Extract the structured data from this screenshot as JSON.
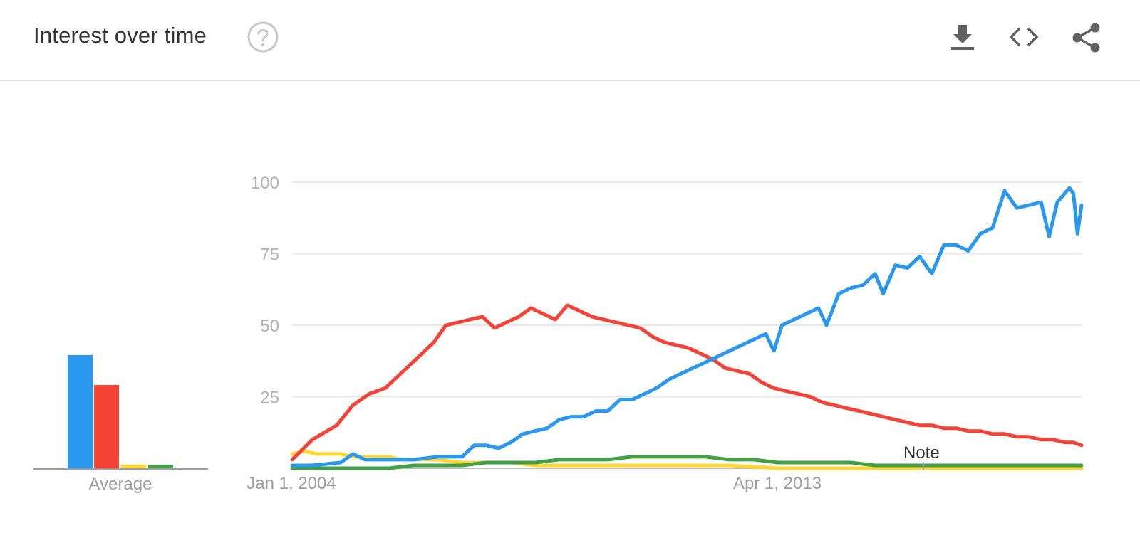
{
  "header": {
    "title": "Interest over time",
    "help_icon": "help-circle-icon",
    "actions": [
      {
        "name": "download",
        "icon": "download-icon"
      },
      {
        "name": "embed",
        "icon": "code-icon"
      },
      {
        "name": "share",
        "icon": "share-icon"
      }
    ]
  },
  "chart_data": {
    "type": "line",
    "x_ticks": [
      "Jan 1, 2004",
      "Apr 1, 2013"
    ],
    "x_range": [
      "2004-01",
      "2020-04"
    ],
    "ylim": [
      0,
      100
    ],
    "y_ticks": [
      25,
      50,
      75,
      100
    ],
    "grid": true,
    "annotations": [
      "Note"
    ],
    "average_label": "Average",
    "averages": [
      {
        "color": "#2b98f0",
        "value": 40
      },
      {
        "color": "#f44336",
        "value": 29.5
      },
      {
        "color": "#fdd835",
        "value": 1.5
      },
      {
        "color": "#43a047",
        "value": 1.5
      }
    ],
    "series": [
      {
        "color": "#2b98f0",
        "points": [
          [
            "2004-01",
            1
          ],
          [
            "2004-06",
            1
          ],
          [
            "2005-01",
            2
          ],
          [
            "2005-04",
            5
          ],
          [
            "2005-07",
            3
          ],
          [
            "2006-01",
            3
          ],
          [
            "2006-07",
            3
          ],
          [
            "2007-01",
            4
          ],
          [
            "2007-07",
            4
          ],
          [
            "2007-10",
            8
          ],
          [
            "2008-01",
            8
          ],
          [
            "2008-04",
            7
          ],
          [
            "2008-07",
            9
          ],
          [
            "2008-10",
            12
          ],
          [
            "2009-01",
            13
          ],
          [
            "2009-04",
            14
          ],
          [
            "2009-07",
            17
          ],
          [
            "2009-10",
            18
          ],
          [
            "2010-01",
            18
          ],
          [
            "2010-04",
            20
          ],
          [
            "2010-07",
            20
          ],
          [
            "2010-10",
            24
          ],
          [
            "2011-01",
            24
          ],
          [
            "2011-04",
            26
          ],
          [
            "2011-07",
            28
          ],
          [
            "2011-10",
            31
          ],
          [
            "2012-01",
            33
          ],
          [
            "2012-04",
            35
          ],
          [
            "2012-07",
            37
          ],
          [
            "2012-10",
            39
          ],
          [
            "2013-01",
            41
          ],
          [
            "2013-04",
            43
          ],
          [
            "2013-07",
            45
          ],
          [
            "2013-10",
            47
          ],
          [
            "2013-12",
            41
          ],
          [
            "2014-02",
            50
          ],
          [
            "2014-05",
            52
          ],
          [
            "2014-08",
            54
          ],
          [
            "2014-11",
            56
          ],
          [
            "2015-01",
            50
          ],
          [
            "2015-04",
            61
          ],
          [
            "2015-07",
            63
          ],
          [
            "2015-10",
            64
          ],
          [
            "2016-01",
            68
          ],
          [
            "2016-03",
            61
          ],
          [
            "2016-06",
            71
          ],
          [
            "2016-09",
            70
          ],
          [
            "2016-12",
            74
          ],
          [
            "2017-03",
            68
          ],
          [
            "2017-06",
            78
          ],
          [
            "2017-09",
            78
          ],
          [
            "2017-12",
            76
          ],
          [
            "2018-03",
            82
          ],
          [
            "2018-06",
            84
          ],
          [
            "2018-09",
            97
          ],
          [
            "2018-12",
            91
          ],
          [
            "2019-03",
            92
          ],
          [
            "2019-06",
            93
          ],
          [
            "2019-08",
            81
          ],
          [
            "2019-10",
            93
          ],
          [
            "2020-01",
            98
          ],
          [
            "2020-02",
            96
          ],
          [
            "2020-03",
            82
          ],
          [
            "2020-04",
            92
          ]
        ]
      },
      {
        "color": "#f44336",
        "points": [
          [
            "2004-01",
            3
          ],
          [
            "2004-06",
            10
          ],
          [
            "2004-12",
            15
          ],
          [
            "2005-04",
            22
          ],
          [
            "2005-08",
            26
          ],
          [
            "2005-12",
            28
          ],
          [
            "2006-03",
            32
          ],
          [
            "2006-06",
            36
          ],
          [
            "2006-09",
            40
          ],
          [
            "2006-12",
            44
          ],
          [
            "2007-03",
            50
          ],
          [
            "2007-06",
            51
          ],
          [
            "2007-09",
            52
          ],
          [
            "2007-12",
            53
          ],
          [
            "2008-03",
            49
          ],
          [
            "2008-06",
            51
          ],
          [
            "2008-09",
            53
          ],
          [
            "2008-12",
            56
          ],
          [
            "2009-03",
            54
          ],
          [
            "2009-06",
            52
          ],
          [
            "2009-09",
            57
          ],
          [
            "2009-12",
            55
          ],
          [
            "2010-03",
            53
          ],
          [
            "2010-06",
            52
          ],
          [
            "2010-09",
            51
          ],
          [
            "2010-12",
            50
          ],
          [
            "2011-03",
            49
          ],
          [
            "2011-06",
            46
          ],
          [
            "2011-09",
            44
          ],
          [
            "2011-12",
            43
          ],
          [
            "2012-03",
            42
          ],
          [
            "2012-06",
            40
          ],
          [
            "2012-09",
            38
          ],
          [
            "2012-12",
            35
          ],
          [
            "2013-03",
            34
          ],
          [
            "2013-06",
            33
          ],
          [
            "2013-09",
            30
          ],
          [
            "2013-12",
            28
          ],
          [
            "2014-03",
            27
          ],
          [
            "2014-06",
            26
          ],
          [
            "2014-09",
            25
          ],
          [
            "2014-12",
            23
          ],
          [
            "2015-03",
            22
          ],
          [
            "2015-06",
            21
          ],
          [
            "2015-09",
            20
          ],
          [
            "2015-12",
            19
          ],
          [
            "2016-03",
            18
          ],
          [
            "2016-06",
            17
          ],
          [
            "2016-09",
            16
          ],
          [
            "2016-12",
            15
          ],
          [
            "2017-03",
            15
          ],
          [
            "2017-06",
            14
          ],
          [
            "2017-09",
            14
          ],
          [
            "2017-12",
            13
          ],
          [
            "2018-03",
            13
          ],
          [
            "2018-06",
            12
          ],
          [
            "2018-09",
            12
          ],
          [
            "2018-12",
            11
          ],
          [
            "2019-03",
            11
          ],
          [
            "2019-06",
            10
          ],
          [
            "2019-09",
            10
          ],
          [
            "2019-12",
            9
          ],
          [
            "2020-02",
            9
          ],
          [
            "2020-04",
            8
          ]
        ]
      },
      {
        "color": "#fdd835",
        "points": [
          [
            "2004-01",
            5
          ],
          [
            "2004-04",
            6
          ],
          [
            "2004-07",
            5
          ],
          [
            "2004-10",
            5
          ],
          [
            "2005-01",
            5
          ],
          [
            "2005-04",
            4
          ],
          [
            "2005-07",
            4
          ],
          [
            "2005-10",
            4
          ],
          [
            "2006-01",
            4
          ],
          [
            "2006-04",
            3
          ],
          [
            "2006-07",
            3
          ],
          [
            "2006-10",
            3
          ],
          [
            "2007-01",
            3
          ],
          [
            "2007-07",
            2
          ],
          [
            "2008-01",
            2
          ],
          [
            "2008-07",
            2
          ],
          [
            "2009-01",
            1
          ],
          [
            "2009-07",
            1
          ],
          [
            "2010-01",
            1
          ],
          [
            "2011-01",
            1
          ],
          [
            "2012-01",
            1
          ],
          [
            "2013-01",
            1
          ],
          [
            "2014-01",
            0
          ],
          [
            "2015-01",
            0
          ],
          [
            "2016-01",
            0
          ],
          [
            "2017-01",
            0
          ],
          [
            "2018-01",
            0
          ],
          [
            "2019-01",
            0
          ],
          [
            "2020-04",
            0
          ]
        ]
      },
      {
        "color": "#43a047",
        "points": [
          [
            "2004-01",
            0
          ],
          [
            "2005-01",
            0
          ],
          [
            "2006-01",
            0
          ],
          [
            "2006-07",
            1
          ],
          [
            "2007-01",
            1
          ],
          [
            "2007-07",
            1
          ],
          [
            "2008-01",
            2
          ],
          [
            "2008-07",
            2
          ],
          [
            "2009-01",
            2
          ],
          [
            "2009-07",
            3
          ],
          [
            "2010-01",
            3
          ],
          [
            "2010-07",
            3
          ],
          [
            "2011-01",
            4
          ],
          [
            "2011-07",
            4
          ],
          [
            "2012-01",
            4
          ],
          [
            "2012-07",
            4
          ],
          [
            "2013-01",
            3
          ],
          [
            "2013-07",
            3
          ],
          [
            "2014-01",
            2
          ],
          [
            "2014-07",
            2
          ],
          [
            "2015-01",
            2
          ],
          [
            "2015-07",
            2
          ],
          [
            "2016-01",
            1
          ],
          [
            "2016-07",
            1
          ],
          [
            "2017-01",
            1
          ],
          [
            "2018-01",
            1
          ],
          [
            "2019-01",
            1
          ],
          [
            "2020-04",
            1
          ]
        ]
      }
    ]
  }
}
